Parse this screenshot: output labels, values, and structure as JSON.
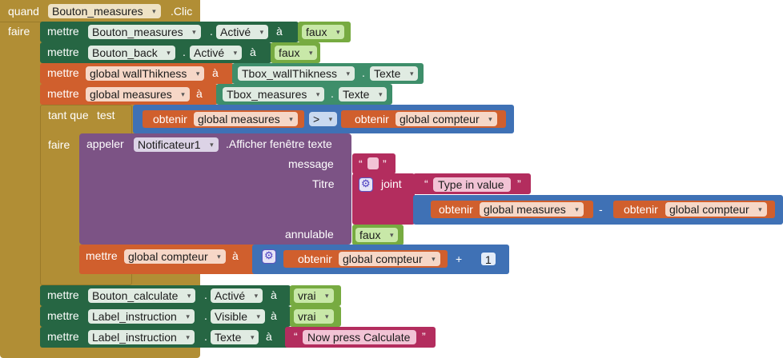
{
  "event": {
    "keyword": "quand",
    "component": "Bouton_measures",
    "event_name": ".Clic",
    "do_label": "faire"
  },
  "statements": {
    "set1": {
      "keyword": "mettre",
      "component": "Bouton_measures",
      "dot": ".",
      "property": "Activé",
      "to": "à",
      "value": "faux"
    },
    "set2": {
      "keyword": "mettre",
      "component": "Bouton_back",
      "dot": ".",
      "property": "Activé",
      "to": "à",
      "value": "faux"
    },
    "set3": {
      "keyword": "mettre",
      "variable": "global wallThikness",
      "to": "à",
      "component": "Tbox_wallThikness",
      "dot": ".",
      "property": "Texte"
    },
    "set4": {
      "keyword": "mettre",
      "variable": "global measures",
      "to": "à",
      "component": "Tbox_measures",
      "dot": ".",
      "property": "Texte"
    },
    "while_loop": {
      "keyword": "tant que",
      "test_label": "test",
      "do_label": "faire",
      "condition": {
        "left_get": "obtenir",
        "left_var": "global measures",
        "operator": ">",
        "right_get": "obtenir",
        "right_var": "global compteur"
      },
      "call": {
        "keyword": "appeler",
        "component": "Notificateur1",
        "method": ".Afficher fenêtre texte",
        "message_label": "message",
        "message_value": "",
        "title_label": "Titre",
        "join_label": "joint",
        "join_text": "Type in value",
        "subtract": {
          "left_get": "obtenir",
          "left_var": "global measures",
          "operator": "-",
          "right_get": "obtenir",
          "right_var": "global compteur"
        },
        "cancelable_label": "annulable",
        "cancelable_value": "faux"
      },
      "increment": {
        "keyword": "mettre",
        "variable": "global compteur",
        "to": "à",
        "get": "obtenir",
        "get_var": "global compteur",
        "operator": "+",
        "number": "1"
      }
    },
    "set5": {
      "keyword": "mettre",
      "component": "Bouton_calculate",
      "dot": ".",
      "property": "Activé",
      "to": "à",
      "value": "vrai"
    },
    "set6": {
      "keyword": "mettre",
      "component": "Label_instruction",
      "dot": ".",
      "property": "Visible",
      "to": "à",
      "value": "vrai"
    },
    "set7": {
      "keyword": "mettre",
      "component": "Label_instruction",
      "dot": ".",
      "property": "Texte",
      "to": "à",
      "value": "Now press Calculate"
    }
  },
  "colors": {
    "event": "#b18e35",
    "component_setter": "#266643",
    "variable_setter": "#d05f2d",
    "control": "#b18e35",
    "math": "#3f71b5",
    "procedure_call": "#7c5385",
    "text": "#b32d5e",
    "logic": "#77ab41"
  },
  "quote_open": "“",
  "quote_close": "”",
  "caret": "▾"
}
